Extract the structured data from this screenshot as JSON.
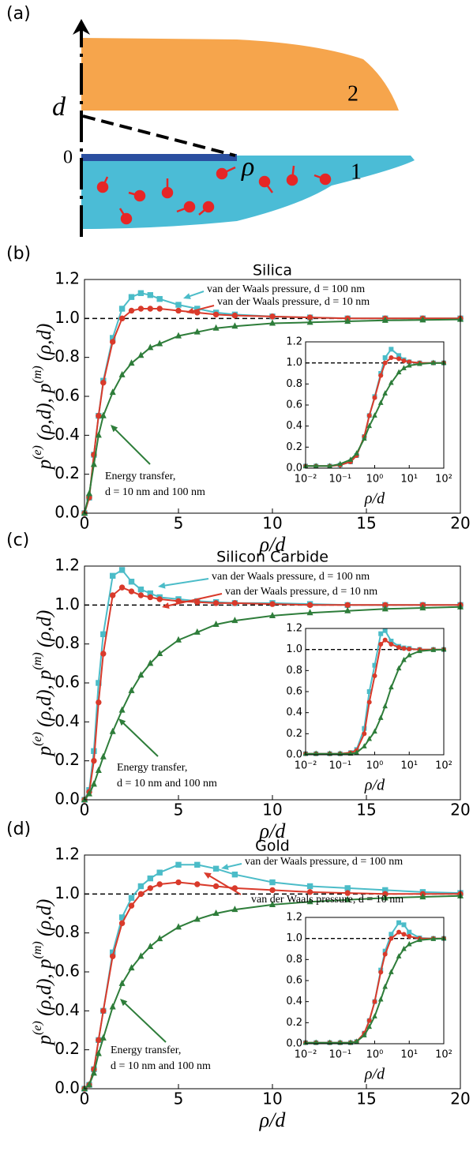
{
  "diagram": {
    "label": "(a)",
    "d": "d",
    "zero": "0",
    "rho": "ρ",
    "medium_1": "1",
    "medium_2": "2"
  },
  "chart_data": [
    {
      "type": "line",
      "panel_label": "(b)",
      "title": "Silica",
      "xlabel": "ρ/d",
      "ylabel": [
        {
          "text": "p"
        },
        {
          "text": "(e)",
          "sup": true
        },
        {
          "text": " (ρ,d), p"
        },
        {
          "text": "(m)",
          "sup": true
        },
        {
          "text": " (ρ,d)"
        }
      ],
      "x": [
        0,
        0.25,
        0.5,
        0.75,
        1,
        1.5,
        2,
        2.5,
        3,
        3.5,
        4,
        5,
        6,
        7,
        8,
        10,
        12,
        14,
        16,
        18,
        20
      ],
      "xlim": [
        0,
        20
      ],
      "xticks": [
        0,
        5,
        10,
        15,
        20
      ],
      "ylim": [
        0,
        1.2
      ],
      "yticks": [
        {
          "value": 0,
          "label": "0.0"
        },
        0.2,
        0.4,
        0.6,
        0.8,
        {
          "value": 1,
          "label": "1.0"
        },
        1.2
      ],
      "reference_line": 1,
      "series": [
        {
          "color": "#4bbcc8",
          "marker": "square",
          "values": [
            0,
            0.08,
            0.3,
            0.5,
            0.68,
            0.9,
            1.05,
            1.11,
            1.13,
            1.12,
            1.1,
            1.07,
            1.05,
            1.03,
            1.02,
            1.01,
            1.005,
            1.0,
            1.0,
            1.0,
            1.0
          ]
        },
        {
          "color": "#d93a2b",
          "marker": "circle",
          "values": [
            0,
            0.08,
            0.3,
            0.5,
            0.67,
            0.88,
            1.0,
            1.04,
            1.05,
            1.05,
            1.05,
            1.04,
            1.03,
            1.02,
            1.015,
            1.01,
            1.005,
            1.0,
            1.0,
            1.0,
            1.0
          ]
        },
        {
          "color": "#2e7d3a",
          "marker": "triangle",
          "values": [
            0,
            0.1,
            0.25,
            0.4,
            0.5,
            0.62,
            0.71,
            0.77,
            0.81,
            0.85,
            0.87,
            0.91,
            0.93,
            0.95,
            0.96,
            0.975,
            0.98,
            0.985,
            0.99,
            0.992,
            0.995
          ]
        }
      ],
      "series_labels": [
        [
          "van der Waals pressure, d = 100 nm"
        ],
        [
          "van der Waals pressure, d = 10 nm"
        ],
        [
          "Energy transfer,",
          "d = 10 nm and 100 nm"
        ]
      ],
      "inset": {
        "xscale": "log",
        "xlabel": "ρ/d",
        "x": [
          0.01,
          0.02,
          0.05,
          0.1,
          0.2,
          0.3,
          0.5,
          0.7,
          1,
          1.5,
          2,
          3,
          5,
          7,
          10,
          20,
          50,
          100
        ],
        "xlim": [
          0.01,
          100
        ],
        "xticks": [
          {
            "value": 0.01,
            "label": "10⁻²"
          },
          {
            "value": 0.1,
            "label": "10⁻¹"
          },
          {
            "value": 1,
            "label": "10⁰"
          },
          {
            "value": 10,
            "label": "10¹"
          },
          {
            "value": 100,
            "label": "10²"
          }
        ],
        "ylim": [
          0,
          1.2
        ],
        "yticks": [
          {
            "value": 0,
            "label": "0.0"
          },
          0.2,
          0.4,
          0.6,
          0.8,
          {
            "value": 1,
            "label": "1.0"
          },
          1.2
        ],
        "series": [
          {
            "values": [
              0.02,
              0.02,
              0.02,
              0.03,
              0.06,
              0.12,
              0.3,
              0.5,
              0.68,
              0.9,
              1.05,
              1.13,
              1.07,
              1.03,
              1.01,
              1.0,
              1.0,
              1.0
            ]
          },
          {
            "values": [
              0.02,
              0.02,
              0.02,
              0.03,
              0.06,
              0.12,
              0.3,
              0.5,
              0.67,
              0.88,
              1.0,
              1.05,
              1.04,
              1.02,
              1.01,
              1.0,
              1.0,
              1.0
            ]
          },
          {
            "values": [
              0.02,
              0.02,
              0.02,
              0.04,
              0.08,
              0.14,
              0.28,
              0.4,
              0.5,
              0.62,
              0.71,
              0.81,
              0.91,
              0.95,
              0.975,
              0.99,
              1.0,
              1.0
            ]
          }
        ]
      }
    },
    {
      "type": "line",
      "panel_label": "(c)",
      "title": "Silicon Carbide",
      "xlabel": "ρ/d",
      "ylabel": [
        {
          "text": "p"
        },
        {
          "text": "(e)",
          "sup": true
        },
        {
          "text": " (ρ,d), p"
        },
        {
          "text": "(m)",
          "sup": true
        },
        {
          "text": " (ρ,d)"
        }
      ],
      "x": [
        0,
        0.25,
        0.5,
        0.75,
        1,
        1.5,
        2,
        2.5,
        3,
        3.5,
        4,
        5,
        6,
        7,
        8,
        10,
        12,
        14,
        16,
        18,
        20
      ],
      "xlim": [
        0,
        20
      ],
      "xticks": [
        0,
        5,
        10,
        15,
        20
      ],
      "ylim": [
        0,
        1.2
      ],
      "yticks": [
        {
          "value": 0,
          "label": "0.0"
        },
        0.2,
        0.4,
        0.6,
        0.8,
        {
          "value": 1,
          "label": "1.0"
        },
        1.2
      ],
      "reference_line": 1,
      "series": [
        {
          "color": "#4bbcc8",
          "marker": "square",
          "values": [
            0,
            0.05,
            0.25,
            0.6,
            0.85,
            1.15,
            1.18,
            1.12,
            1.08,
            1.06,
            1.04,
            1.03,
            1.02,
            1.015,
            1.01,
            1.01,
            1.005,
            1.0,
            1.0,
            1.0,
            1.0
          ]
        },
        {
          "color": "#d93a2b",
          "marker": "circle",
          "values": [
            0,
            0.04,
            0.2,
            0.5,
            0.75,
            1.05,
            1.09,
            1.07,
            1.05,
            1.04,
            1.03,
            1.02,
            1.015,
            1.01,
            1.01,
            1.005,
            1.0,
            1.0,
            1.0,
            1.0,
            1.0
          ]
        },
        {
          "color": "#2e7d3a",
          "marker": "triangle",
          "values": [
            0,
            0.03,
            0.08,
            0.15,
            0.22,
            0.35,
            0.46,
            0.56,
            0.64,
            0.7,
            0.75,
            0.82,
            0.86,
            0.9,
            0.92,
            0.945,
            0.96,
            0.97,
            0.98,
            0.985,
            0.99
          ]
        }
      ],
      "series_labels": [
        [
          "van der Waals pressure, d = 100 nm"
        ],
        [
          "van der Waals pressure, d = 10 nm"
        ],
        [
          "Energy transfer,",
          "d = 10 nm and 100 nm"
        ]
      ],
      "inset": {
        "xscale": "log",
        "xlabel": "ρ/d",
        "x": [
          0.01,
          0.02,
          0.05,
          0.1,
          0.2,
          0.3,
          0.5,
          0.7,
          1,
          1.5,
          2,
          3,
          5,
          7,
          10,
          20,
          50,
          100
        ],
        "xlim": [
          0.01,
          100
        ],
        "xticks": [
          {
            "value": 0.01,
            "label": "10⁻²"
          },
          {
            "value": 0.1,
            "label": "10⁻¹"
          },
          {
            "value": 1,
            "label": "10⁰"
          },
          {
            "value": 10,
            "label": "10¹"
          },
          {
            "value": 100,
            "label": "10²"
          }
        ],
        "ylim": [
          0,
          1.2
        ],
        "yticks": [
          {
            "value": 0,
            "label": "0.0"
          },
          0.2,
          0.4,
          0.6,
          0.8,
          {
            "value": 1,
            "label": "1.0"
          },
          1.2
        ],
        "series": [
          {
            "values": [
              0.01,
              0.01,
              0.01,
              0.01,
              0.02,
              0.05,
              0.25,
              0.6,
              0.85,
              1.15,
              1.18,
              1.08,
              1.03,
              1.015,
              1.01,
              1.0,
              1.0,
              1.0
            ]
          },
          {
            "values": [
              0.01,
              0.01,
              0.01,
              0.01,
              0.02,
              0.04,
              0.2,
              0.5,
              0.75,
              1.05,
              1.09,
              1.05,
              1.02,
              1.01,
              1.005,
              1.0,
              1.0,
              1.0
            ]
          },
          {
            "values": [
              0.01,
              0.01,
              0.01,
              0.01,
              0.01,
              0.02,
              0.08,
              0.15,
              0.22,
              0.35,
              0.46,
              0.64,
              0.82,
              0.9,
              0.945,
              0.985,
              0.995,
              1.0
            ]
          }
        ]
      }
    },
    {
      "type": "line",
      "panel_label": "(d)",
      "title": "Gold",
      "xlabel": "ρ/d",
      "ylabel": [
        {
          "text": "p"
        },
        {
          "text": "(e)",
          "sup": true
        },
        {
          "text": " (ρ,d), p"
        },
        {
          "text": "(m)",
          "sup": true
        },
        {
          "text": " (ρ,d)"
        }
      ],
      "x": [
        0,
        0.25,
        0.5,
        0.75,
        1,
        1.5,
        2,
        2.5,
        3,
        3.5,
        4,
        5,
        6,
        7,
        8,
        10,
        12,
        14,
        16,
        18,
        20
      ],
      "xlim": [
        0,
        20
      ],
      "xticks": [
        0,
        5,
        10,
        15,
        20
      ],
      "ylim": [
        0,
        1.2
      ],
      "yticks": [
        {
          "value": 0,
          "label": "0.0"
        },
        0.2,
        0.4,
        0.6,
        0.8,
        {
          "value": 1,
          "label": "1.0"
        },
        1.2
      ],
      "reference_line": 1,
      "series": [
        {
          "color": "#4bbcc8",
          "marker": "square",
          "values": [
            0,
            0.02,
            0.1,
            0.25,
            0.4,
            0.7,
            0.88,
            0.98,
            1.04,
            1.08,
            1.11,
            1.15,
            1.15,
            1.13,
            1.1,
            1.06,
            1.04,
            1.03,
            1.02,
            1.01,
            1.005
          ]
        },
        {
          "color": "#d93a2b",
          "marker": "circle",
          "values": [
            0,
            0.02,
            0.1,
            0.25,
            0.4,
            0.68,
            0.85,
            0.94,
            1.0,
            1.03,
            1.05,
            1.06,
            1.05,
            1.04,
            1.03,
            1.02,
            1.01,
            1.005,
            1.0,
            1.0,
            1.0
          ]
        },
        {
          "color": "#2e7d3a",
          "marker": "triangle",
          "values": [
            0,
            0.02,
            0.08,
            0.18,
            0.26,
            0.42,
            0.54,
            0.62,
            0.68,
            0.73,
            0.77,
            0.83,
            0.87,
            0.9,
            0.92,
            0.945,
            0.96,
            0.97,
            0.98,
            0.985,
            0.99
          ]
        }
      ],
      "series_labels": [
        [
          "van der Waals pressure, d = 100 nm"
        ],
        [
          "van der Waals pressure, d = 10 nm"
        ],
        [
          "Energy transfer,",
          "d = 10 nm and 100 nm"
        ]
      ],
      "inset": {
        "xscale": "log",
        "xlabel": "ρ/d",
        "x": [
          0.01,
          0.02,
          0.05,
          0.1,
          0.2,
          0.3,
          0.5,
          0.7,
          1,
          1.5,
          2,
          3,
          5,
          7,
          10,
          20,
          50,
          100
        ],
        "xlim": [
          0.01,
          100
        ],
        "xticks": [
          {
            "value": 0.01,
            "label": "10⁻²"
          },
          {
            "value": 0.1,
            "label": "10⁻¹"
          },
          {
            "value": 1,
            "label": "10⁰"
          },
          {
            "value": 10,
            "label": "10¹"
          },
          {
            "value": 100,
            "label": "10²"
          }
        ],
        "ylim": [
          0,
          1.2
        ],
        "yticks": [
          {
            "value": 0,
            "label": "0.0"
          },
          0.2,
          0.4,
          0.6,
          0.8,
          {
            "value": 1,
            "label": "1.0"
          },
          1.2
        ],
        "series": [
          {
            "values": [
              0.01,
              0.01,
              0.01,
              0.01,
              0.01,
              0.02,
              0.1,
              0.22,
              0.4,
              0.7,
              0.88,
              1.04,
              1.15,
              1.13,
              1.06,
              1.005,
              1.0,
              1.0
            ]
          },
          {
            "values": [
              0.01,
              0.01,
              0.01,
              0.01,
              0.01,
              0.02,
              0.1,
              0.22,
              0.4,
              0.68,
              0.85,
              1.0,
              1.06,
              1.04,
              1.02,
              1.0,
              1.0,
              1.0
            ]
          },
          {
            "values": [
              0.01,
              0.01,
              0.01,
              0.01,
              0.01,
              0.02,
              0.08,
              0.16,
              0.26,
              0.42,
              0.54,
              0.68,
              0.83,
              0.9,
              0.945,
              0.985,
              0.995,
              1.0
            ]
          }
        ]
      }
    }
  ]
}
